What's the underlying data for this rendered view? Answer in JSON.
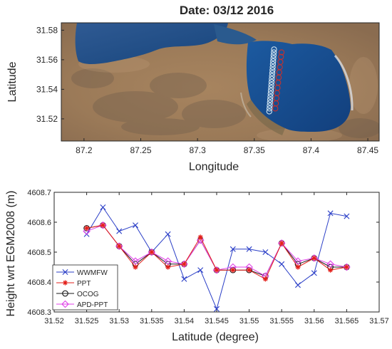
{
  "figure_title": "Date: 03/12 2016",
  "chart_data": [
    {
      "type": "scatter",
      "subtype": "satellite-image-map",
      "title": "Date: 03/12 2016",
      "xlabel": "Longitude",
      "ylabel": "Latitude",
      "xlim": [
        87.18,
        87.46
      ],
      "ylim": [
        31.505,
        31.585
      ],
      "xticks": [
        87.2,
        87.25,
        87.3,
        87.35,
        87.4,
        87.45
      ],
      "yticks": [
        31.52,
        31.54,
        31.56,
        31.58
      ],
      "xtick_labels": [
        "87.2",
        "87.25",
        "87.3",
        "87.35",
        "87.4",
        "87.45"
      ],
      "ytick_labels": [
        "31.52",
        "31.54",
        "31.56",
        "31.58"
      ],
      "series": [
        {
          "marker": "circle",
          "color": "#cfe3f0",
          "x": [
            87.3632,
            87.3634,
            87.3636,
            87.3638,
            87.364,
            87.3642,
            87.3644,
            87.3646,
            87.3648,
            87.365,
            87.3652,
            87.3654,
            87.3656,
            87.3658,
            87.366,
            87.3662,
            87.3664,
            87.3666,
            87.3668,
            87.367,
            87.3672,
            87.3674
          ],
          "y": [
            31.525,
            31.527,
            31.529,
            31.531,
            31.533,
            31.535,
            31.537,
            31.539,
            31.541,
            31.543,
            31.545,
            31.547,
            31.549,
            31.551,
            31.553,
            31.555,
            31.557,
            31.559,
            31.561,
            31.563,
            31.565,
            31.567
          ]
        },
        {
          "marker": "circle",
          "color": "#c8302c",
          "x": [
            87.3685,
            87.369,
            87.3695,
            87.37,
            87.3705,
            87.371,
            87.3715,
            87.372,
            87.3725,
            87.373,
            87.3735,
            87.374
          ],
          "y": [
            31.527,
            31.5305,
            31.534,
            31.5375,
            31.541,
            31.5445,
            31.548,
            31.5515,
            31.555,
            31.5585,
            31.562,
            31.565
          ]
        }
      ]
    },
    {
      "type": "line",
      "xlabel": "Latitude (degree)",
      "ylabel": "Height wrt EGM2008 (m)",
      "xlim": [
        31.52,
        31.57
      ],
      "ylim": [
        4608.3,
        4608.7
      ],
      "grid": false,
      "legend_position": "bottom-left",
      "xticks": [
        31.52,
        31.525,
        31.53,
        31.535,
        31.54,
        31.545,
        31.55,
        31.555,
        31.56,
        31.565,
        31.57
      ],
      "yticks": [
        4608.3,
        4608.4,
        4608.5,
        4608.6,
        4608.7
      ],
      "xtick_labels": [
        "31.52",
        "31.525",
        "31.53",
        "31.535",
        "31.54",
        "31.545",
        "31.55",
        "31.555",
        "31.56",
        "31.565",
        "31.57"
      ],
      "ytick_labels": [
        "4608.3",
        "4608.4",
        "4608.5",
        "4608.6",
        "4608.7"
      ],
      "series": [
        {
          "name": "WWMFW",
          "color": "#2b3fc7",
          "marker": "x",
          "x": [
            31.525,
            31.5275,
            31.53,
            31.5325,
            31.535,
            31.5375,
            31.54,
            31.5425,
            31.545,
            31.5475,
            31.55,
            31.5525,
            31.555,
            31.5575,
            31.56,
            31.5625,
            31.565
          ],
          "y": [
            4608.56,
            4608.65,
            4608.57,
            4608.59,
            4608.5,
            4608.56,
            4608.41,
            4608.44,
            4608.31,
            4608.51,
            4608.51,
            4608.5,
            4608.46,
            4608.39,
            4608.43,
            4608.63,
            4608.62
          ]
        },
        {
          "name": "PPT",
          "color": "#e3201b",
          "marker": "asterisk",
          "x": [
            31.525,
            31.5275,
            31.53,
            31.5325,
            31.535,
            31.5375,
            31.54,
            31.5425,
            31.545,
            31.5475,
            31.55,
            31.5525,
            31.555,
            31.5575,
            31.56,
            31.5625,
            31.565
          ],
          "y": [
            4608.58,
            4608.59,
            4608.52,
            4608.45,
            4608.5,
            4608.45,
            4608.46,
            4608.55,
            4608.44,
            4608.44,
            4608.44,
            4608.41,
            4608.53,
            4608.45,
            4608.48,
            4608.44,
            4608.45
          ]
        },
        {
          "name": "OCOG",
          "color": "#1a1a1a",
          "marker": "circle",
          "x": [
            31.525,
            31.5275,
            31.53,
            31.5325,
            31.535,
            31.5375,
            31.54,
            31.5425,
            31.545,
            31.5475,
            31.55,
            31.5525,
            31.555,
            31.5575,
            31.56,
            31.5625,
            31.565
          ],
          "y": [
            4608.58,
            4608.59,
            4608.52,
            4608.46,
            4608.5,
            4608.46,
            4608.46,
            4608.54,
            4608.44,
            4608.44,
            4608.44,
            4608.42,
            4608.53,
            4608.46,
            4608.48,
            4608.45,
            4608.45
          ]
        },
        {
          "name": "APD-PPT",
          "color": "#e040e8",
          "marker": "diamond",
          "x": [
            31.525,
            31.5275,
            31.53,
            31.5325,
            31.535,
            31.5375,
            31.54,
            31.5425,
            31.545,
            31.5475,
            31.55,
            31.5525,
            31.555,
            31.5575,
            31.56,
            31.5625,
            31.565
          ],
          "y": [
            4608.57,
            4608.59,
            4608.52,
            4608.47,
            4608.5,
            4608.47,
            4608.46,
            4608.54,
            4608.44,
            4608.45,
            4608.45,
            4608.42,
            4608.53,
            4608.47,
            4608.48,
            4608.46,
            4608.45
          ]
        }
      ]
    }
  ]
}
